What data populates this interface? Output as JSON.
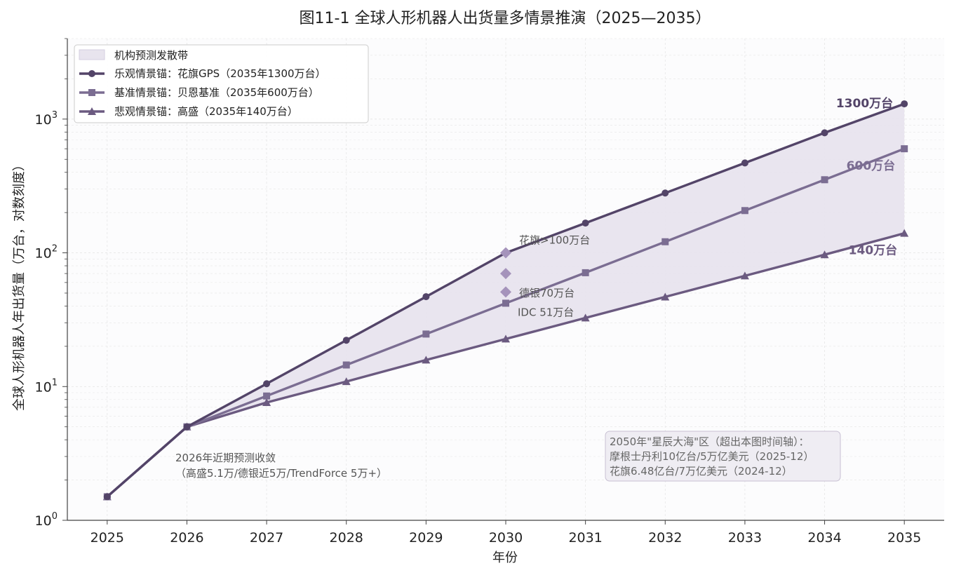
{
  "chart_data": {
    "type": "line",
    "title": "图11-1 全球人形机器人出货量多情景推演（2025—2035）",
    "xlabel": "年份",
    "ylabel": "全球人形机器人年出货量（万台，对数刻度）",
    "yscale": "log",
    "ylim": [
      1,
      4000
    ],
    "xlim": [
      2024.5,
      2035.5
    ],
    "x": [
      2025,
      2026,
      2027,
      2028,
      2029,
      2030,
      2031,
      2032,
      2033,
      2034,
      2035
    ],
    "x_tick_labels": [
      "2025",
      "2026",
      "2027",
      "2028",
      "2029",
      "2030",
      "2031",
      "2032",
      "2033",
      "2034",
      "2035"
    ],
    "y_ticks": [
      {
        "value": 1,
        "base": "10",
        "exp": "0"
      },
      {
        "value": 10,
        "base": "10",
        "exp": "1"
      },
      {
        "value": 100,
        "base": "10",
        "exp": "2"
      },
      {
        "value": 1000,
        "base": "10",
        "exp": "3"
      }
    ],
    "grid": true,
    "legend_position": "top-left",
    "band_label": "机构预测发散带",
    "series": [
      {
        "name": "乐观情景锚：花旗GPS（2035年1300万台）",
        "marker": "circle",
        "color": "#534468",
        "values": [
          1.5,
          5,
          10.5,
          22.2,
          47,
          100,
          167,
          280,
          470,
          790,
          1300
        ],
        "end_label": "1300万台"
      },
      {
        "name": "基准情景锚：贝恩基准（2035年600万台）",
        "marker": "square",
        "color": "#7b6d92",
        "values": [
          1.5,
          5,
          8.5,
          14.5,
          24.7,
          42,
          71,
          121,
          207,
          352,
          600
        ],
        "end_label": "600万台"
      },
      {
        "name": "悲观情景锚：高盛（2035年140万台）",
        "marker": "triangle",
        "color": "#6b5a80",
        "values": [
          1.5,
          5,
          7.6,
          10.9,
          15.8,
          22.7,
          32.6,
          46.8,
          67.3,
          96.8,
          140
        ],
        "end_label": "140万台"
      }
    ],
    "points_2030": [
      {
        "x": 2030,
        "y": 100,
        "label": "花旗>100万台"
      },
      {
        "x": 2030,
        "y": 70,
        "label": "德银70万台"
      },
      {
        "x": 2030,
        "y": 51,
        "label": "IDC 51万台"
      }
    ],
    "annotations": {
      "near_term": [
        "2026年近期预测收敛",
        "（高盛5.1万/德银近5万/TrendForce 5万+）"
      ],
      "box": [
        "2050年\"星辰大海\"区（超出本图时间轴）：",
        "摩根士丹利10亿台/5万亿美元（2025-12）",
        "花旗6.48亿台/7万亿美元（2024-12）"
      ]
    },
    "colors": {
      "band": "#e8e4ee",
      "point": "#a593bb",
      "axis": "#444444",
      "grid": "#e6e6e6"
    }
  }
}
